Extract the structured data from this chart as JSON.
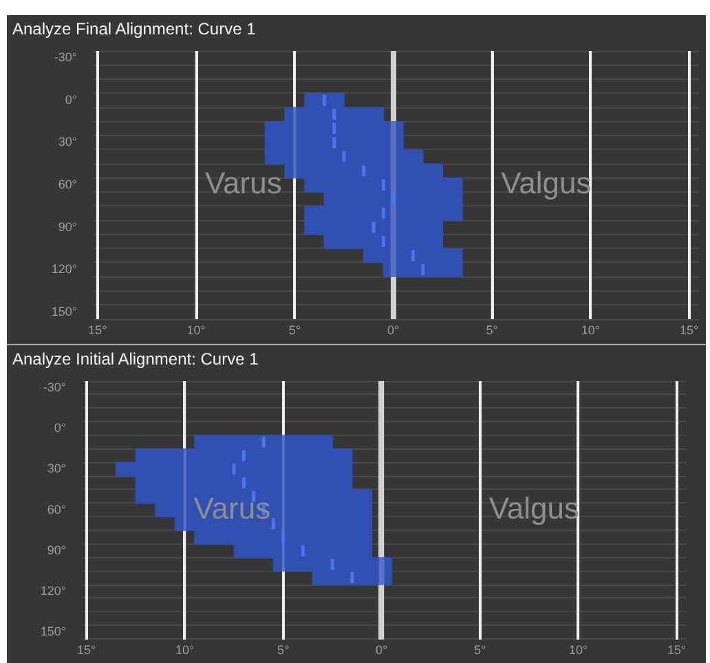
{
  "chart_data": [
    {
      "type": "bar",
      "title": "Analyze Final Alignment: Curve 1",
      "orientation": "horizontal",
      "grid": true,
      "annotations": [
        "Varus",
        "Valgus"
      ],
      "categories": [
        "-30°",
        null,
        null,
        "0°",
        null,
        null,
        "30°",
        null,
        null,
        "60°",
        null,
        null,
        "90°",
        null,
        null,
        "120°",
        null,
        null,
        "150°"
      ],
      "xlim": [
        -15.2,
        15.5
      ],
      "xticks": [
        {
          "value": -15,
          "label": "15°"
        },
        {
          "value": -10,
          "label": "10°"
        },
        {
          "value": -5,
          "label": "5°"
        },
        {
          "value": 0,
          "label": "0°"
        },
        {
          "value": 5,
          "label": "5°"
        },
        {
          "value": 10,
          "label": "10°"
        },
        {
          "value": 15,
          "label": "15°"
        }
      ],
      "series": [
        {
          "type": "bar",
          "color": "#3050b2",
          "base": [
            null,
            null,
            null,
            -4.5,
            -5.5,
            -6.5,
            -6.5,
            -6.5,
            -5.5,
            -4.5,
            -3.5,
            -4.5,
            -4.5,
            -3.5,
            -1.5,
            -0.5,
            null,
            null,
            null
          ],
          "values": [
            null,
            null,
            null,
            2,
            5,
            7,
            7,
            8,
            8,
            8,
            7,
            8,
            7,
            6,
            5,
            4,
            null,
            null,
            null
          ]
        },
        {
          "type": "scatter",
          "color": "#4b74ee",
          "values": [
            null,
            null,
            null,
            -3.5,
            -3,
            -3,
            -3,
            -2.5,
            -1.5,
            -0.5,
            0,
            -0.5,
            -1,
            -0.5,
            1,
            1.5,
            null,
            null,
            null
          ]
        }
      ]
    },
    {
      "type": "bar",
      "title": "Analyze Initial Alignment: Curve 1",
      "orientation": "horizontal",
      "grid": true,
      "annotations": [
        "Varus",
        "Valgus"
      ],
      "categories": [
        "-30°",
        null,
        null,
        "0°",
        null,
        null,
        "30°",
        null,
        null,
        "60°",
        null,
        null,
        "90°",
        null,
        null,
        "120°",
        null,
        null,
        "150°"
      ],
      "xlim": [
        -15.2,
        15.5
      ],
      "xticks": [
        {
          "value": -15,
          "label": "15°"
        },
        {
          "value": -10,
          "label": "10°"
        },
        {
          "value": -5,
          "label": "5°"
        },
        {
          "value": 0,
          "label": "0°"
        },
        {
          "value": 5,
          "label": "5°"
        },
        {
          "value": 10,
          "label": "10°"
        },
        {
          "value": 15,
          "label": "15°"
        }
      ],
      "series": [
        {
          "type": "bar",
          "color": "#3050b2",
          "base": [
            null,
            null,
            null,
            null,
            -9.5,
            -12.5,
            -13.5,
            -12.5,
            -12.5,
            -11.5,
            -10.5,
            -9.5,
            -7.5,
            -5.5,
            -3.5,
            null,
            null,
            null,
            null
          ],
          "values": [
            null,
            null,
            null,
            null,
            7,
            11,
            12,
            11,
            12,
            11,
            10,
            9,
            7,
            6,
            4,
            null,
            null,
            null,
            null
          ]
        },
        {
          "type": "scatter",
          "color": "#4b74ee",
          "values": [
            null,
            null,
            null,
            null,
            -6,
            -7,
            -7.5,
            -7,
            -6.5,
            -6,
            -5.5,
            -5,
            -4,
            -2.5,
            -1.5,
            null,
            null,
            null,
            null
          ]
        }
      ]
    }
  ]
}
